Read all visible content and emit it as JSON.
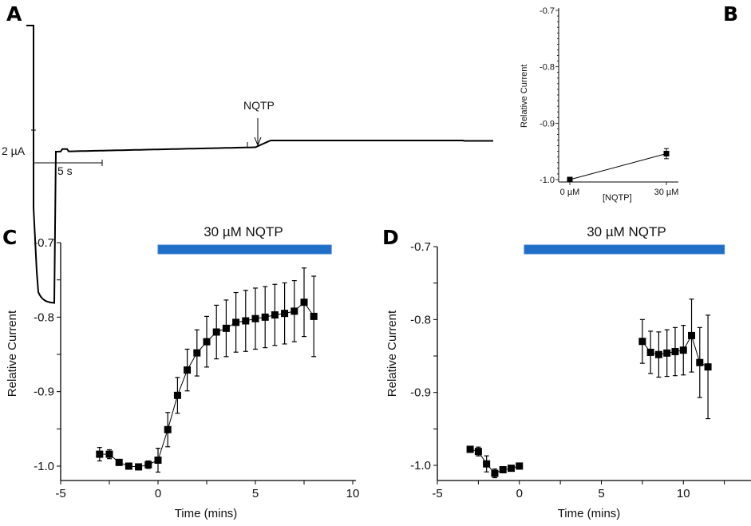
{
  "panels": {
    "a": "A",
    "b": "B",
    "c": "C",
    "d": "D"
  },
  "colors": {
    "treatment_bar": "#1f6fc8",
    "marker": "#000000"
  },
  "chart_data": [
    {
      "id": "A",
      "type": "line",
      "description_label": "",
      "annotation": "NQTP",
      "scale_bar_y": "2 µA",
      "scale_bar_x": "5 s"
    },
    {
      "id": "B",
      "type": "line",
      "ylabel": "Relative Current",
      "xlabel": "[NQTP]",
      "categories": [
        "0 µM",
        "30 µM"
      ],
      "values": [
        -1.0,
        -0.954
      ],
      "errors": [
        0.001,
        0.009
      ],
      "ylim": [
        -1.0,
        -0.7
      ],
      "yticks": [
        "-0.7",
        "-0.8",
        "-0.9",
        "-1.0"
      ]
    },
    {
      "id": "C",
      "type": "scatter",
      "xlabel": "Time (mins)",
      "ylabel": "Relative Current",
      "xlim": [
        -5,
        10
      ],
      "ylim": [
        -1.0,
        -0.7
      ],
      "xticks": [
        "-5",
        "0",
        "5",
        "10"
      ],
      "yticks": [
        "-0.7",
        "-0.8",
        "-0.9",
        "-1.0"
      ],
      "treatment": {
        "label": "30 µM NQTP",
        "start": 0,
        "end": 8.9
      },
      "x": [
        -3,
        -2.5,
        -2,
        -1.5,
        -1,
        -0.5,
        0,
        0.5,
        1,
        1.5,
        2,
        2.5,
        3,
        3.5,
        4,
        4.5,
        5,
        5.5,
        6,
        6.5,
        7,
        7.5,
        8
      ],
      "y": [
        -0.984,
        -0.984,
        -0.995,
        -1.0,
        -1.001,
        -0.998,
        -0.992,
        -0.951,
        -0.905,
        -0.871,
        -0.848,
        -0.833,
        -0.82,
        -0.815,
        -0.807,
        -0.805,
        -0.802,
        -0.8,
        -0.797,
        -0.795,
        -0.792,
        -0.78,
        -0.799
      ],
      "errors": [
        0.009,
        0.006,
        0.003,
        0.002,
        0.002,
        0.005,
        0.016,
        0.023,
        0.024,
        0.028,
        0.031,
        0.034,
        0.036,
        0.038,
        0.04,
        0.041,
        0.041,
        0.041,
        0.041,
        0.041,
        0.041,
        0.046,
        0.054
      ]
    },
    {
      "id": "D",
      "type": "scatter",
      "xlabel": "Time (mins)",
      "ylabel": "Relative Current",
      "xlim": [
        -5,
        15
      ],
      "ylim": [
        -1.0,
        -0.7
      ],
      "xticks": [
        "-5",
        "0",
        "5",
        "10"
      ],
      "yticks": [
        "-0.7",
        "-0.8",
        "-0.9",
        "-1.0"
      ],
      "treatment": {
        "label": "30 µM NQTP",
        "start": 0.3,
        "end": 12.5
      },
      "x": [
        -3,
        -2.5,
        -2,
        -1.5,
        -1,
        -0.5,
        0,
        7.5,
        8,
        8.5,
        9,
        9.5,
        10,
        10.5,
        11,
        11.5
      ],
      "y": [
        -0.978,
        -0.981,
        -0.998,
        -1.011,
        -1.006,
        -1.004,
        -1.001,
        -0.83,
        -0.845,
        -0.848,
        -0.846,
        -0.844,
        -0.842,
        -0.822,
        -0.859,
        -0.865
      ],
      "errors": [
        0.004,
        0.006,
        0.011,
        0.006,
        0.002,
        0.002,
        0.002,
        0.03,
        0.029,
        0.031,
        0.032,
        0.033,
        0.034,
        0.05,
        0.048,
        0.071
      ]
    }
  ]
}
